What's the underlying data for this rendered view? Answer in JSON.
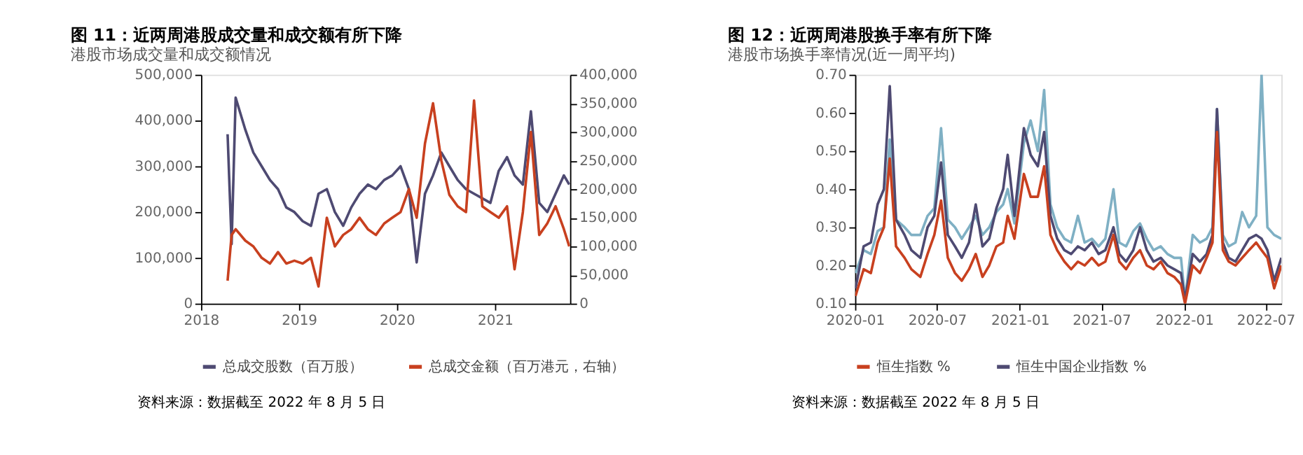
{
  "chart_data": [
    {
      "type": "line",
      "title": "图 11：近两周港股成交量和成交额有所下降",
      "subtitle": "港股市场成交量和成交额情况",
      "x": [
        "2018-04-10",
        "2018-04-25",
        "2018-05-10",
        "2018-06-15",
        "2018-07-15",
        "2018-08-15",
        "2018-09-15",
        "2018-10-15",
        "2018-11-15",
        "2018-12-15",
        "2019-01-15",
        "2019-02-15",
        "2019-03-15",
        "2019-04-15",
        "2019-05-15",
        "2019-06-15",
        "2019-07-15",
        "2019-08-15",
        "2019-09-15",
        "2019-10-15",
        "2019-11-15",
        "2019-12-15",
        "2020-01-15",
        "2020-02-15",
        "2020-03-15",
        "2020-04-15",
        "2020-05-15",
        "2020-06-15",
        "2020-07-15",
        "2020-08-15",
        "2020-09-15",
        "2020-10-15",
        "2020-11-15",
        "2020-12-15",
        "2021-01-15",
        "2021-02-15",
        "2021-03-15",
        "2021-04-15",
        "2021-05-15",
        "2021-06-15",
        "2021-07-15",
        "2021-08-15",
        "2021-09-15",
        "2021-10-05"
      ],
      "series": [
        {
          "name": "总成交股数（百万股）",
          "color": "#4e4a72",
          "values": [
            370000,
            130000,
            450000,
            380000,
            330000,
            300000,
            270000,
            250000,
            210000,
            200000,
            180000,
            170000,
            240000,
            250000,
            200000,
            170000,
            210000,
            240000,
            260000,
            250000,
            270000,
            280000,
            300000,
            250000,
            90000,
            240000,
            280000,
            330000,
            300000,
            270000,
            250000,
            240000,
            230000,
            220000,
            290000,
            320000,
            280000,
            260000,
            420000,
            220000,
            200000,
            240000,
            280000,
            260000
          ]
        },
        {
          "name": "总成交金额（百万港元，右轴）",
          "color": "#c8401f",
          "axis": "y2",
          "values": [
            40000,
            120000,
            130000,
            110000,
            100000,
            80000,
            70000,
            90000,
            70000,
            75000,
            70000,
            80000,
            30000,
            150000,
            100000,
            120000,
            130000,
            150000,
            130000,
            120000,
            140000,
            150000,
            160000,
            200000,
            150000,
            280000,
            350000,
            250000,
            190000,
            170000,
            160000,
            355000,
            170000,
            160000,
            150000,
            170000,
            60000,
            160000,
            300000,
            120000,
            140000,
            170000,
            130000,
            100000
          ]
        }
      ],
      "xlim": [
        "2018-01-01",
        "2021-10-08"
      ],
      "xticks": [
        "2018",
        "2019",
        "2020",
        "2021"
      ],
      "ylim": [
        0,
        500000
      ],
      "yticks": [
        0,
        {
          "value": 100000,
          "label": "100,000"
        },
        {
          "value": 200000,
          "label": "200,000"
        },
        {
          "value": 300000,
          "label": "300,000"
        },
        {
          "value": 400000,
          "label": "400,000"
        },
        {
          "value": 500000,
          "label": "500,000"
        }
      ],
      "y2lim": [
        0,
        400000
      ],
      "y2ticks": [
        0,
        {
          "value": 50000,
          "label": "50,000"
        },
        {
          "value": 100000,
          "label": "100,000"
        },
        {
          "value": 150000,
          "label": "150,000"
        },
        {
          "value": 200000,
          "label": "200,000"
        },
        {
          "value": 250000,
          "label": "250,000"
        },
        {
          "value": 300000,
          "label": "300,000"
        },
        {
          "value": 350000,
          "label": "350,000"
        },
        {
          "value": 400000,
          "label": "400,000"
        }
      ],
      "legend": "bottom",
      "grid": false,
      "marker": "none",
      "line_style": "solid",
      "annotations": [
        "资料来源：数据截至 2022 年 8 月 5 日"
      ]
    },
    {
      "type": "line",
      "title": "图 12：近两周港股换手率有所下降",
      "subtitle": "港股市场换手率情况(近一周平均)",
      "x": [
        "2020-01-02",
        "2020-01-20",
        "2020-02-05",
        "2020-02-20",
        "2020-03-05",
        "2020-03-18",
        "2020-04-01",
        "2020-04-20",
        "2020-05-05",
        "2020-05-25",
        "2020-06-10",
        "2020-06-25",
        "2020-07-10",
        "2020-07-25",
        "2020-08-10",
        "2020-08-25",
        "2020-09-10",
        "2020-09-25",
        "2020-10-10",
        "2020-10-25",
        "2020-11-10",
        "2020-11-25",
        "2020-12-05",
        "2020-12-20",
        "2021-01-10",
        "2021-01-25",
        "2021-02-10",
        "2021-02-24",
        "2021-03-10",
        "2021-03-25",
        "2021-04-10",
        "2021-04-25",
        "2021-05-10",
        "2021-05-25",
        "2021-06-10",
        "2021-06-25",
        "2021-07-10",
        "2021-07-28",
        "2021-08-10",
        "2021-08-25",
        "2021-09-10",
        "2021-09-25",
        "2021-10-10",
        "2021-10-25",
        "2021-11-10",
        "2021-11-25",
        "2021-12-10",
        "2021-12-25",
        "2022-01-03",
        "2022-01-20",
        "2022-02-05",
        "2022-02-20",
        "2022-03-05",
        "2022-03-15",
        "2022-03-28",
        "2022-04-10",
        "2022-04-25",
        "2022-05-10",
        "2022-05-25",
        "2022-06-10",
        "2022-06-22",
        "2022-07-05",
        "2022-07-20",
        "2022-08-05"
      ],
      "series": [
        {
          "name": "恒生指数 %",
          "color": "#c8401f",
          "values": [
            0.12,
            0.19,
            0.18,
            0.26,
            0.3,
            0.48,
            0.25,
            0.22,
            0.19,
            0.17,
            0.23,
            0.28,
            0.37,
            0.22,
            0.18,
            0.16,
            0.19,
            0.23,
            0.17,
            0.2,
            0.25,
            0.26,
            0.33,
            0.27,
            0.44,
            0.38,
            0.38,
            0.46,
            0.28,
            0.24,
            0.21,
            0.19,
            0.21,
            0.2,
            0.22,
            0.2,
            0.21,
            0.28,
            0.21,
            0.19,
            0.22,
            0.24,
            0.2,
            0.19,
            0.21,
            0.18,
            0.17,
            0.15,
            0.1,
            0.2,
            0.18,
            0.22,
            0.26,
            0.55,
            0.24,
            0.21,
            0.2,
            0.22,
            0.24,
            0.26,
            0.24,
            0.22,
            0.14,
            0.2
          ]
        },
        {
          "name": "恒生中国企业指数 %",
          "color": "#4e4a72",
          "values": [
            0.14,
            0.25,
            0.26,
            0.36,
            0.4,
            0.67,
            0.32,
            0.28,
            0.24,
            0.22,
            0.3,
            0.33,
            0.47,
            0.28,
            0.25,
            0.22,
            0.26,
            0.36,
            0.25,
            0.27,
            0.35,
            0.4,
            0.49,
            0.33,
            0.56,
            0.49,
            0.46,
            0.55,
            0.33,
            0.27,
            0.24,
            0.23,
            0.25,
            0.24,
            0.26,
            0.23,
            0.24,
            0.3,
            0.23,
            0.21,
            0.24,
            0.3,
            0.24,
            0.21,
            0.22,
            0.2,
            0.19,
            0.18,
            0.11,
            0.23,
            0.21,
            0.23,
            0.28,
            0.61,
            0.26,
            0.22,
            0.21,
            0.24,
            0.27,
            0.28,
            0.27,
            0.24,
            0.16,
            0.22
          ]
        },
        {
          "color": "#7fb0c4",
          "values": [
            0.18,
            0.24,
            0.23,
            0.29,
            0.3,
            0.53,
            0.32,
            0.3,
            0.28,
            0.28,
            0.33,
            0.35,
            0.56,
            0.32,
            0.3,
            0.27,
            0.3,
            0.33,
            0.28,
            0.3,
            0.34,
            0.36,
            0.4,
            0.31,
            0.52,
            0.58,
            0.5,
            0.66,
            0.36,
            0.3,
            0.27,
            0.26,
            0.33,
            0.26,
            0.27,
            0.25,
            0.27,
            0.4,
            0.26,
            0.25,
            0.29,
            0.31,
            0.27,
            0.24,
            0.25,
            0.23,
            0.22,
            0.22,
            0.11,
            0.28,
            0.26,
            0.27,
            0.3,
            0.61,
            0.28,
            0.25,
            0.26,
            0.34,
            0.3,
            0.33,
            0.7,
            0.3,
            0.28,
            0.27
          ]
        }
      ],
      "xlim": [
        "2020-01-01",
        "2022-08-05"
      ],
      "xticks": [
        "2020-01",
        "2020-07",
        "2021-01",
        "2021-07",
        "2022-01",
        "2022-07"
      ],
      "ylim": [
        0.1,
        0.7
      ],
      "yticks": [
        {
          "value": 0.1,
          "label": "0.10"
        },
        {
          "value": 0.2,
          "label": "0.20"
        },
        {
          "value": 0.3,
          "label": "0.30"
        },
        {
          "value": 0.4,
          "label": "0.40"
        },
        {
          "value": 0.5,
          "label": "0.50"
        },
        {
          "value": 0.6,
          "label": "0.60"
        },
        {
          "value": 0.7,
          "label": "0.70"
        }
      ],
      "legend": "bottom",
      "grid": false,
      "marker": "none",
      "line_style": "solid",
      "annotations": [
        "资料来源：数据截至 2022 年 8 月 5 日"
      ]
    }
  ]
}
